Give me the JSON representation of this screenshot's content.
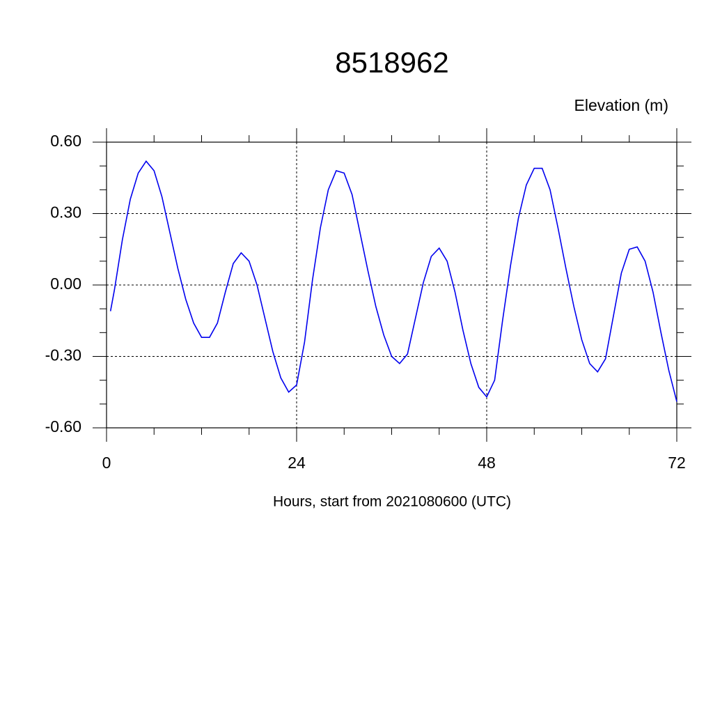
{
  "chart_data": {
    "type": "line",
    "title": "8518962",
    "subtitle": "Elevation (m)",
    "xlabel": "Hours, start from 2021080600 (UTC)",
    "xlim": [
      0,
      72
    ],
    "xticks": [
      0,
      24,
      48,
      72
    ],
    "xminorticks": [
      6,
      12,
      18,
      30,
      36,
      42,
      54,
      60,
      66
    ],
    "ylim": [
      -0.6,
      0.6
    ],
    "yticks": [
      {
        "value": -0.6,
        "label": "-0.60"
      },
      {
        "value": -0.3,
        "label": "-0.30"
      },
      {
        "value": 0,
        "label": "0.00"
      },
      {
        "value": 0.3,
        "label": "0.30"
      },
      {
        "value": 0.6,
        "label": "0.60"
      }
    ],
    "yminorticks": [
      -0.5,
      -0.4,
      -0.2,
      -0.1,
      0.1,
      0.2,
      0.4,
      0.5
    ],
    "grid": true,
    "series": [
      {
        "color": "#0000ee",
        "x": [
          0.5,
          1,
          2,
          3,
          4,
          5,
          6,
          7,
          8,
          9,
          10,
          11,
          12,
          13,
          14,
          15,
          16,
          17,
          18,
          19,
          20,
          21,
          22,
          23,
          24,
          25,
          26,
          27,
          28,
          29,
          30,
          31,
          32,
          33,
          34,
          35,
          36,
          37,
          38,
          39,
          40,
          41,
          42,
          43,
          44,
          45,
          46,
          47,
          48,
          49,
          50,
          51,
          52,
          53,
          54,
          55,
          56,
          57,
          58,
          59,
          60,
          61,
          62,
          63,
          64,
          65,
          66,
          67,
          68,
          69,
          70,
          71,
          72
        ],
        "values": [
          -0.11,
          -0.02,
          0.19,
          0.36,
          0.47,
          0.52,
          0.48,
          0.37,
          0.22,
          0.07,
          -0.06,
          -0.16,
          -0.22,
          -0.22,
          -0.16,
          -0.03,
          0.09,
          0.135,
          0.1,
          0,
          -0.14,
          -0.28,
          -0.39,
          -0.45,
          -0.42,
          -0.24,
          0.02,
          0.24,
          0.4,
          0.48,
          0.47,
          0.38,
          0.22,
          0.06,
          -0.09,
          -0.21,
          -0.3,
          -0.33,
          -0.29,
          -0.14,
          0.01,
          0.12,
          0.155,
          0.1,
          -0.03,
          -0.19,
          -0.33,
          -0.43,
          -0.47,
          -0.4,
          -0.15,
          0.08,
          0.28,
          0.42,
          0.49,
          0.49,
          0.4,
          0.24,
          0.07,
          -0.09,
          -0.23,
          -0.33,
          -0.365,
          -0.31,
          -0.13,
          0.05,
          0.15,
          0.16,
          0.1,
          -0.03,
          -0.2,
          -0.36,
          -0.49
        ]
      }
    ]
  }
}
